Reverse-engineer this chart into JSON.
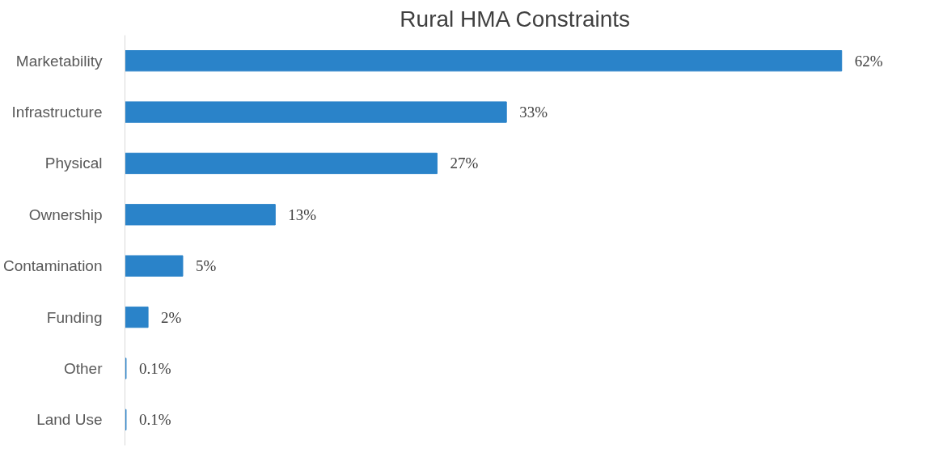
{
  "chart_data": {
    "type": "bar",
    "orientation": "horizontal",
    "title": "Rural HMA Constraints",
    "categories": [
      "Marketability",
      "Infrastructure",
      "Physical",
      "Ownership",
      "Contamination",
      "Funding",
      "Other",
      "Land Use"
    ],
    "values": [
      62,
      33,
      27,
      13,
      5,
      2,
      0.1,
      0.1
    ],
    "value_labels": [
      "62%",
      "33%",
      "27%",
      "13%",
      "5%",
      "2%",
      "0.1%",
      "0.1%"
    ],
    "color": "#2a83c9",
    "tick_labels": "y"
  }
}
